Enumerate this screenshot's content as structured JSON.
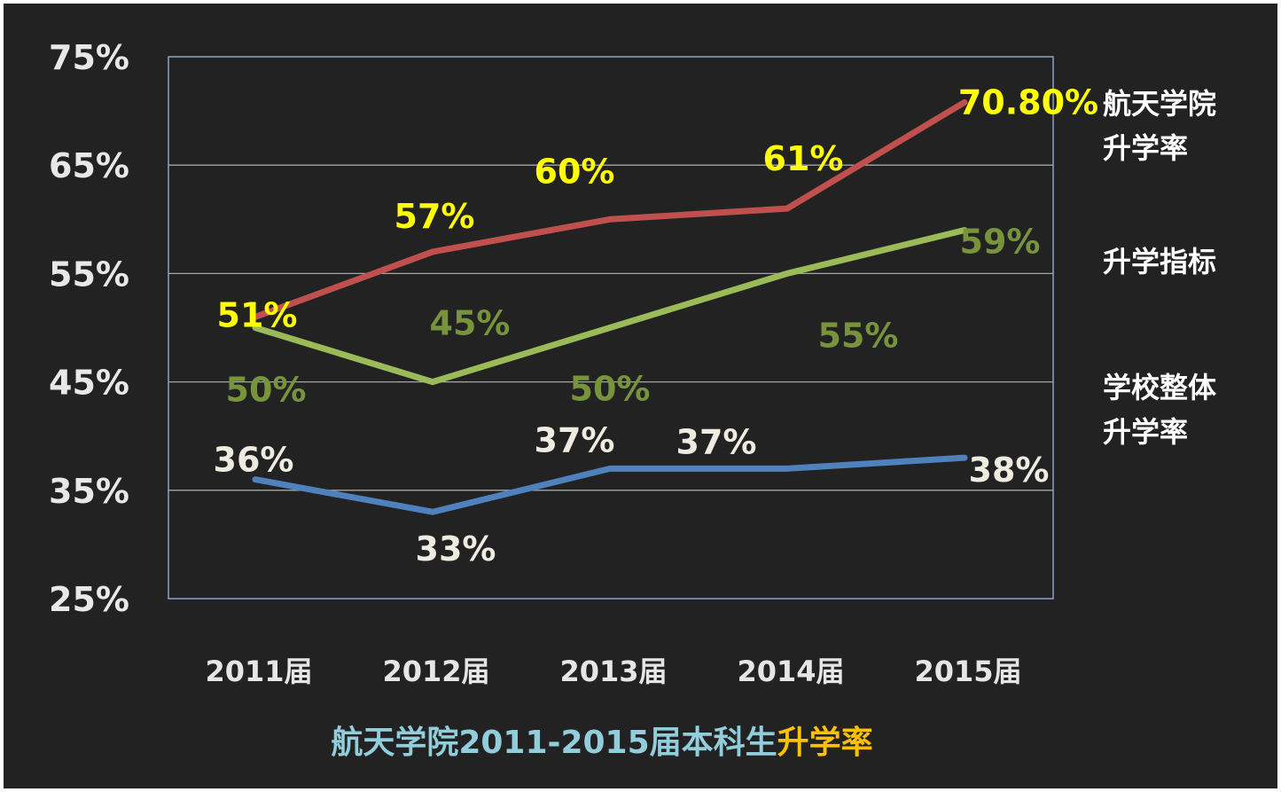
{
  "chart_data": {
    "type": "line",
    "title_main": "航天学院2011-2015届本科生",
    "title_accent": "升学率",
    "categories": [
      "2011届",
      "2012届",
      "2013届",
      "2014届",
      "2015届"
    ],
    "y_ticks": [
      "75%",
      "65%",
      "55%",
      "45%",
      "35%",
      "25%"
    ],
    "ylim": [
      25,
      75
    ],
    "grid": true,
    "series": [
      {
        "key": "aero",
        "legend": [
          "航天学院",
          "升学率"
        ],
        "values": [
          51,
          57,
          60,
          61,
          70.8
        ],
        "labels": [
          "51%",
          "57%",
          "60%",
          "61%",
          "70.80%"
        ],
        "color": "#c0504d",
        "label_color": "#ffff00"
      },
      {
        "key": "target",
        "legend": [
          "升学指标"
        ],
        "values": [
          50,
          45,
          50,
          55,
          59
        ],
        "labels": [
          "50%",
          "45%",
          "50%",
          "55%",
          "59%"
        ],
        "color": "#9bbb59",
        "label_color": "#77933c"
      },
      {
        "key": "school",
        "legend": [
          "学校整体",
          "升学率"
        ],
        "values": [
          36,
          33,
          37,
          37,
          38
        ],
        "labels": [
          "36%",
          "33%",
          "37%",
          "37%",
          "38%"
        ],
        "color": "#4f81bd",
        "label_color": "#eeece1"
      }
    ],
    "colors": {
      "background": "#222222",
      "title_main": "#92cddc",
      "title_accent": "#ffc000",
      "frame": "#8da3c8",
      "grid": "#a6a6a6"
    }
  }
}
